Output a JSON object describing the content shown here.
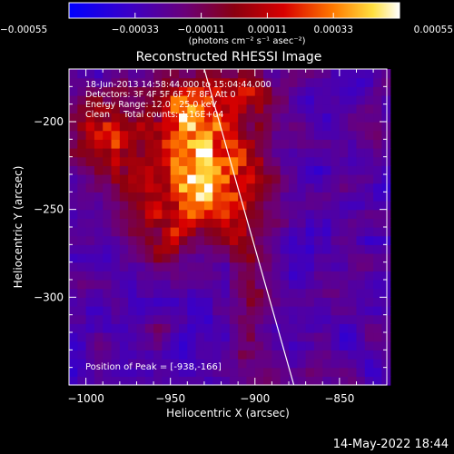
{
  "chart_data": {
    "type": "heatmap",
    "title": "Reconstructed RHESSI Image",
    "xlabel": "Heliocentric X (arcsec)",
    "ylabel": "Heliocentric Y (arcsec)",
    "xlim": [
      -1010,
      -822
    ],
    "ylim": [
      -350,
      -170
    ],
    "xticks": [
      -1000,
      -950,
      -900,
      -850
    ],
    "xtick_labels": [
      "−1000",
      "−950",
      "−900",
      "−850"
    ],
    "yticks": [
      -200,
      -250,
      -300
    ],
    "ytick_labels": [
      "−200",
      "−250",
      "−300"
    ],
    "colorbar": {
      "min": -0.00055,
      "max": 0.00055,
      "ticks": [
        -0.00055,
        -0.00033,
        -0.00011,
        0.00011,
        0.00033,
        0.00055
      ],
      "tick_labels": [
        "−0.00055",
        "−0.00033",
        "−0.00011",
        "0.00011",
        "0.00033",
        "0.00055"
      ],
      "units_label": "(photons cm⁻² s⁻¹ asec⁻²)"
    },
    "annotations": [
      "18-Jun-2013 14:58:44.000 to 15:04:44.000",
      "Detectors: 3F 4F 5F 6F 7F 8F, Att 0",
      "Energy Range: 12.0 - 25.0 keV",
      "Clean     Total counts: 1.16E+04"
    ],
    "peak_label": "Position of Peak = [-938,-166]",
    "peak": {
      "x": -938,
      "y": -166
    },
    "limb_line": {
      "x1": -930,
      "y1": -170,
      "x2": -877,
      "y2": -350
    },
    "source_blobs": [
      {
        "x": -930,
        "y": -233,
        "sx": 22,
        "sy": 22,
        "amp": 1.0
      },
      {
        "x": -940,
        "y": -195,
        "sx": 15,
        "sy": 14,
        "amp": 0.75
      },
      {
        "x": -990,
        "y": -212,
        "sx": 16,
        "sy": 18,
        "amp": 0.6
      },
      {
        "x": -905,
        "y": -185,
        "sx": 12,
        "sy": 10,
        "amp": 0.45
      },
      {
        "x": -960,
        "y": -260,
        "sx": 14,
        "sy": 14,
        "amp": 0.35
      },
      {
        "x": -905,
        "y": -300,
        "sx": 8,
        "sy": 30,
        "amp": 0.3
      }
    ]
  },
  "footer_timestamp": "14-May-2022 18:44"
}
